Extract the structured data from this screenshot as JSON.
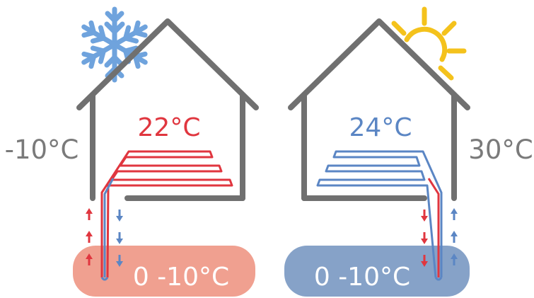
{
  "scenes": [
    {
      "season": "winter",
      "outside_temp": "-10°C",
      "inside_temp": "22°C",
      "ground_temp": "0 -10°C",
      "weather_icon": "snowflake-icon",
      "pipe_color": "#e0363f",
      "ground_color": "#f0a090",
      "arrow_colors": {
        "up": "#e0363f",
        "down": "#5b86c4"
      }
    },
    {
      "season": "summer",
      "outside_temp": "30°C",
      "inside_temp": "24°C",
      "ground_temp": "0 -10°C",
      "weather_icon": "sun-icon",
      "pipe_color": "#5b86c4",
      "ground_color": "#86a2c8",
      "arrow_colors": {
        "up": "#5b86c4",
        "down": "#e0363f"
      }
    }
  ],
  "colors": {
    "house_outline": "#707070",
    "outside_text": "#7a7a7a",
    "snowflake": "#6fa3dd",
    "sun": "#f4c21c",
    "ground_text": "#ffffff"
  }
}
